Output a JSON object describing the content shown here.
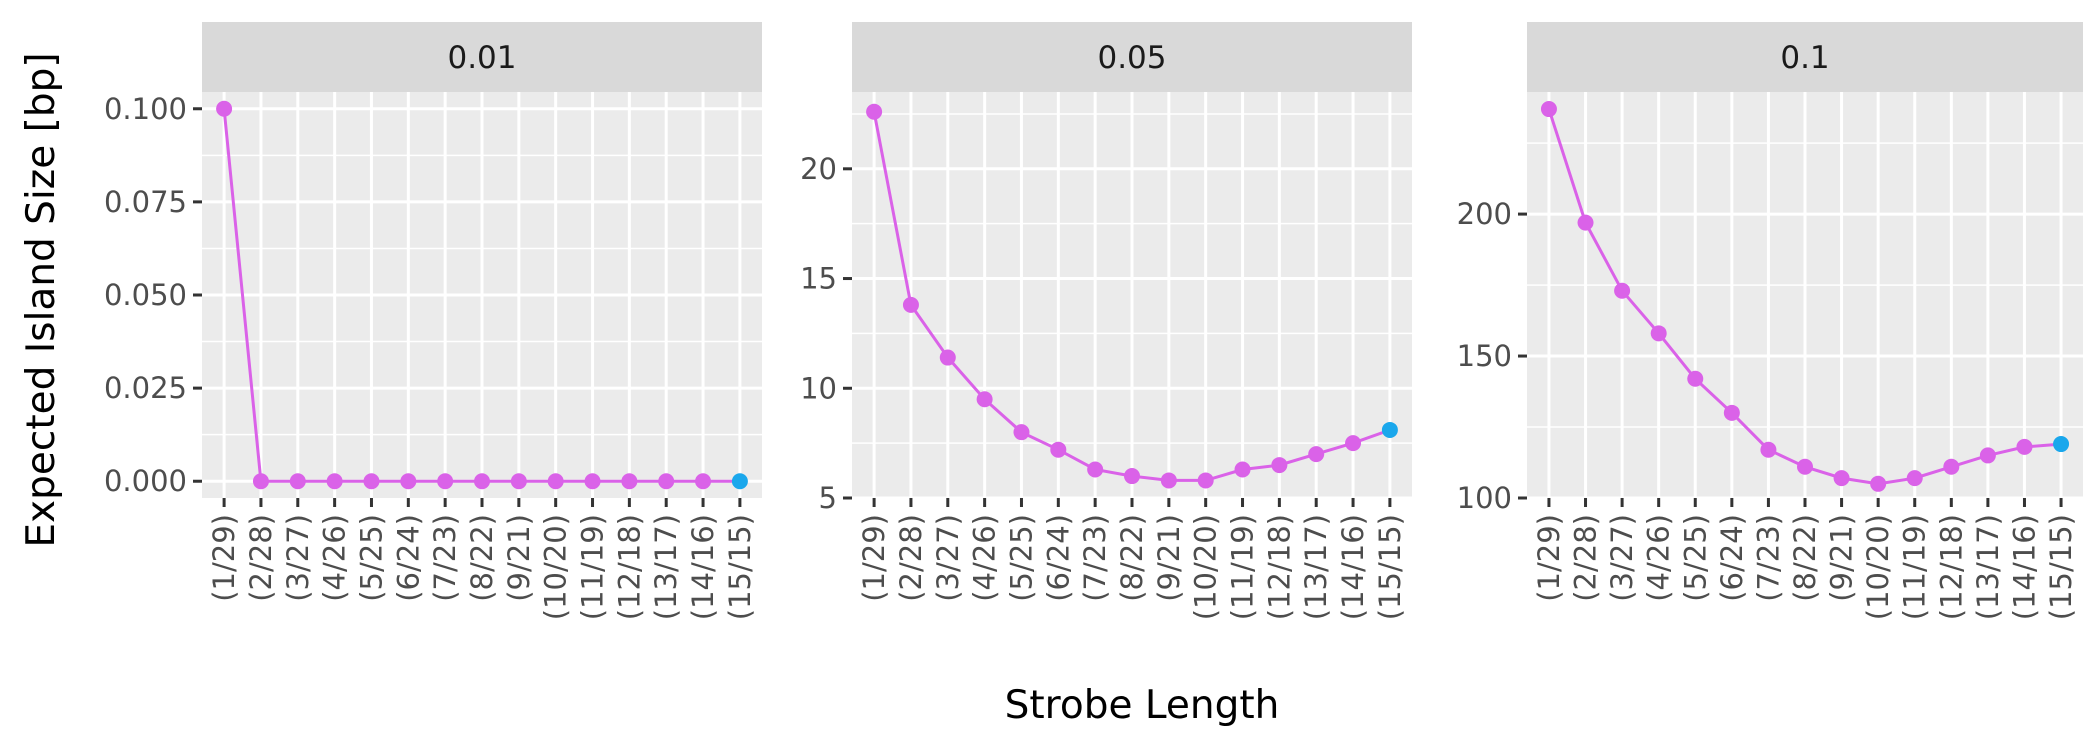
{
  "chart_data": {
    "type": "line",
    "xlabel": "Strobe Length",
    "ylabel": "Expected Island Size [bp]",
    "categories": [
      "(1/29)",
      "(2/28)",
      "(3/27)",
      "(4/26)",
      "(5/25)",
      "(6/24)",
      "(7/23)",
      "(8/22)",
      "(9/21)",
      "(10/20)",
      "(11/19)",
      "(12/18)",
      "(13/17)",
      "(14/16)",
      "(15/15)"
    ],
    "grid": true,
    "colors": {
      "series": "#DA62E8",
      "last_point": "#1AA7EC",
      "panel_bg": "#EBEBEB",
      "strip_bg": "#D9D9D9",
      "grid": "#FFFFFF"
    },
    "panels": [
      {
        "label": "0.01",
        "values": [
          0.1,
          0,
          0,
          0,
          0,
          0,
          0,
          0,
          0,
          0,
          0,
          0,
          0,
          0,
          0
        ],
        "ylim": [
          -0.0045,
          0.1045
        ],
        "yticks": [
          0,
          0.025,
          0.05,
          0.075,
          0.1
        ],
        "ytick_labels": [
          "0.000",
          "0.025",
          "0.050",
          "0.075",
          "0.100"
        ]
      },
      {
        "label": "0.05",
        "values": [
          22.6,
          13.8,
          11.4,
          9.5,
          8.0,
          7.2,
          6.3,
          6.0,
          5.8,
          5.8,
          6.3,
          6.5,
          7.0,
          7.5,
          8.1
        ],
        "ylim": [
          5,
          23.5
        ],
        "yticks": [
          5,
          10,
          15,
          20
        ],
        "ytick_labels": [
          "5",
          "10",
          "15",
          "20"
        ]
      },
      {
        "label": "0.1",
        "values": [
          237,
          197,
          173,
          158,
          142,
          130,
          117,
          111,
          107,
          105,
          107,
          111,
          115,
          118,
          119
        ],
        "ylim": [
          100,
          243
        ],
        "yticks": [
          100,
          150,
          200
        ],
        "ytick_labels": [
          "100",
          "150",
          "200"
        ]
      }
    ]
  }
}
